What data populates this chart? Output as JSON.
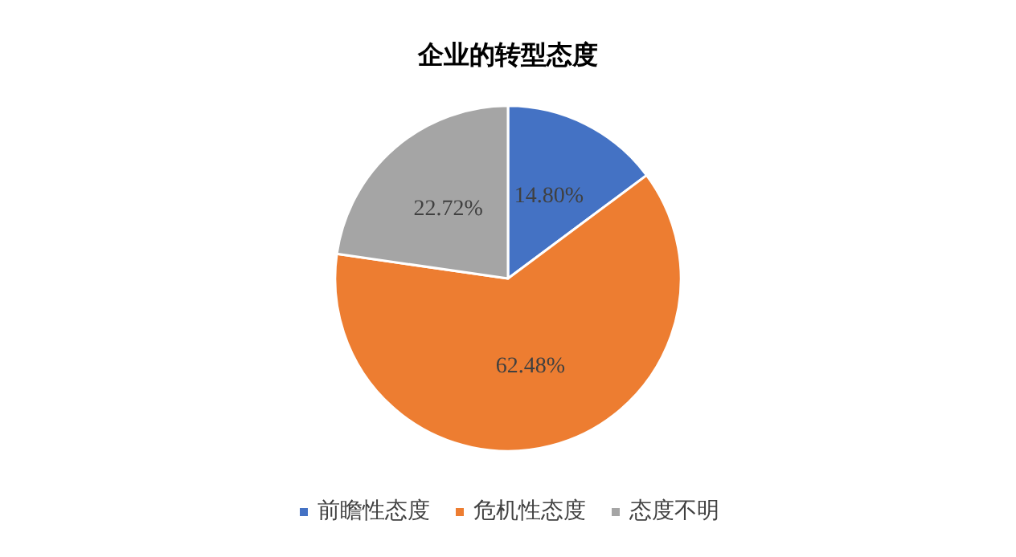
{
  "chart_data": {
    "type": "pie",
    "title": "企业的转型态度",
    "categories": [
      "前瞻性态度",
      "危机性态度",
      "态度不明"
    ],
    "values": [
      14.8,
      62.48,
      22.72
    ],
    "value_labels": [
      "14.80%",
      "62.48%",
      "22.72%"
    ],
    "colors": [
      "#4472c4",
      "#ed7d31",
      "#a5a5a5"
    ],
    "legend": "bottom"
  }
}
